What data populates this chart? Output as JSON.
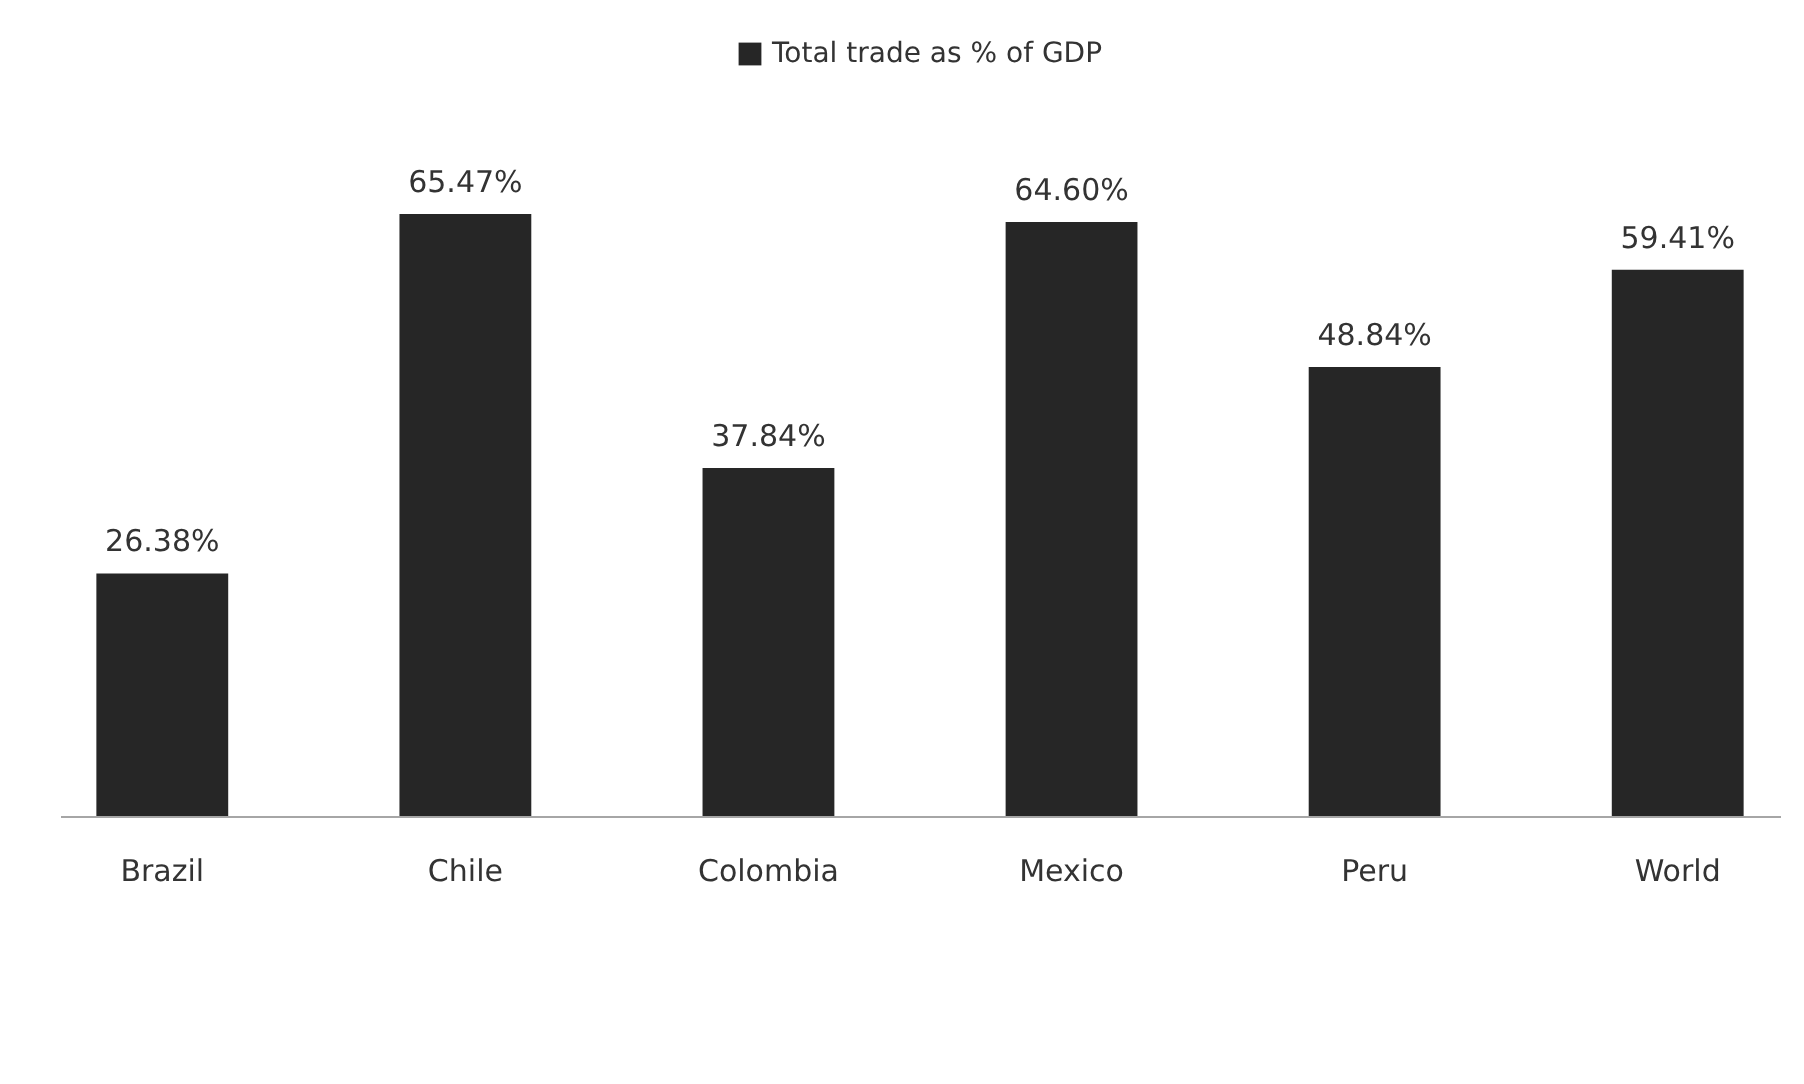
{
  "chart_data": {
    "type": "bar",
    "categories": [
      "Brazil",
      "Chile",
      "Colombia",
      "Mexico",
      "Peru",
      "World"
    ],
    "series": [
      {
        "name": "Total trade as % of GDP",
        "color": "#262626",
        "values": [
          26.38,
          65.47,
          37.84,
          64.6,
          48.84,
          59.41
        ],
        "value_labels": [
          "26.38%",
          "65.47%",
          "37.84%",
          "64.60%",
          "48.84%",
          "59.41%"
        ]
      }
    ],
    "legend": "top"
  }
}
